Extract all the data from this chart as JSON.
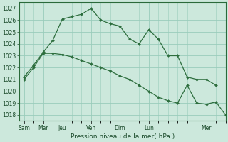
{
  "background_color": "#cce8dc",
  "grid_color": "#99ccbb",
  "line_color": "#2d6e3e",
  "marker_color": "#2d6e3e",
  "ylabel_values": [
    1018,
    1019,
    1020,
    1021,
    1022,
    1023,
    1024,
    1025,
    1026,
    1027
  ],
  "ylim": [
    1017.5,
    1027.5
  ],
  "xlabel": "Pression niveau de la mer( hPa )",
  "x_day_positions": [
    0,
    2,
    4,
    7,
    10,
    13,
    19
  ],
  "x_day_labels": [
    "Sam",
    "Mar",
    "Jeu",
    "Ven",
    "Dim",
    "Lun",
    "Mer"
  ],
  "xlim": [
    -0.5,
    21
  ],
  "s1x": [
    0,
    1,
    2,
    3,
    4,
    5,
    6,
    7,
    8,
    9,
    10,
    11,
    12,
    13,
    14,
    15,
    16,
    17,
    18,
    19,
    20
  ],
  "s1y": [
    1021.2,
    1022.2,
    1023.3,
    1024.3,
    1026.1,
    1026.3,
    1026.5,
    1027.0,
    1026.0,
    1025.7,
    1025.5,
    1024.4,
    1024.0,
    1025.2,
    1024.4,
    1023.0,
    1023.0,
    1021.2,
    1021.0,
    1021.0,
    1020.5
  ],
  "s2x": [
    0,
    1,
    2,
    3,
    4,
    5,
    6,
    7,
    8,
    9,
    10,
    11,
    12,
    13,
    14,
    15,
    16,
    17,
    18,
    19,
    20,
    21
  ],
  "s2y": [
    1021.0,
    1022.0,
    1023.2,
    1023.2,
    1023.1,
    1022.9,
    1022.6,
    1022.3,
    1022.0,
    1021.7,
    1021.3,
    1021.0,
    1020.5,
    1020.0,
    1019.5,
    1019.2,
    1019.0,
    1020.5,
    1019.0,
    1018.9,
    1019.1,
    1018.0
  ]
}
